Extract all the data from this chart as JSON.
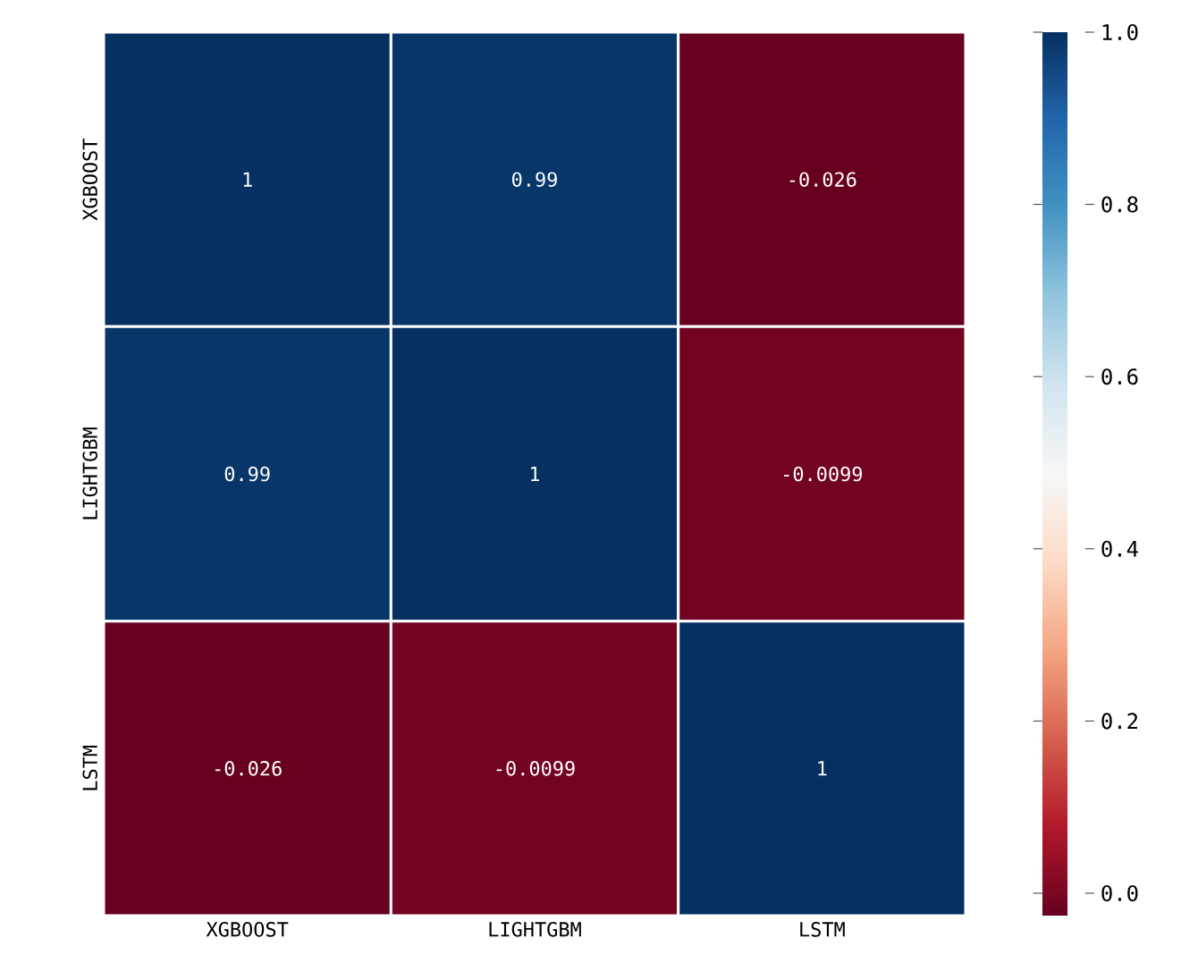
{
  "chart_data": {
    "type": "heatmap",
    "categories": [
      "XGBOOST",
      "LIGHTGBM",
      "LSTM"
    ],
    "y_categories": [
      "XGBOOST",
      "LIGHTGBM",
      "LSTM"
    ],
    "cells": [
      [
        1,
        0.99,
        -0.026
      ],
      [
        0.99,
        1,
        -0.0099
      ],
      [
        -0.026,
        -0.0099,
        1
      ]
    ],
    "data_labels": true,
    "clim": [
      -0.026,
      1
    ],
    "cticks": [
      {
        "value": 0,
        "label": "0.0"
      },
      {
        "value": 0.2,
        "label": "0.2"
      },
      {
        "value": 0.4,
        "label": "0.4"
      },
      {
        "value": 0.6,
        "label": "0.6"
      },
      {
        "value": 0.8,
        "label": "0.8"
      },
      {
        "value": 1,
        "label": "1.0"
      }
    ]
  }
}
